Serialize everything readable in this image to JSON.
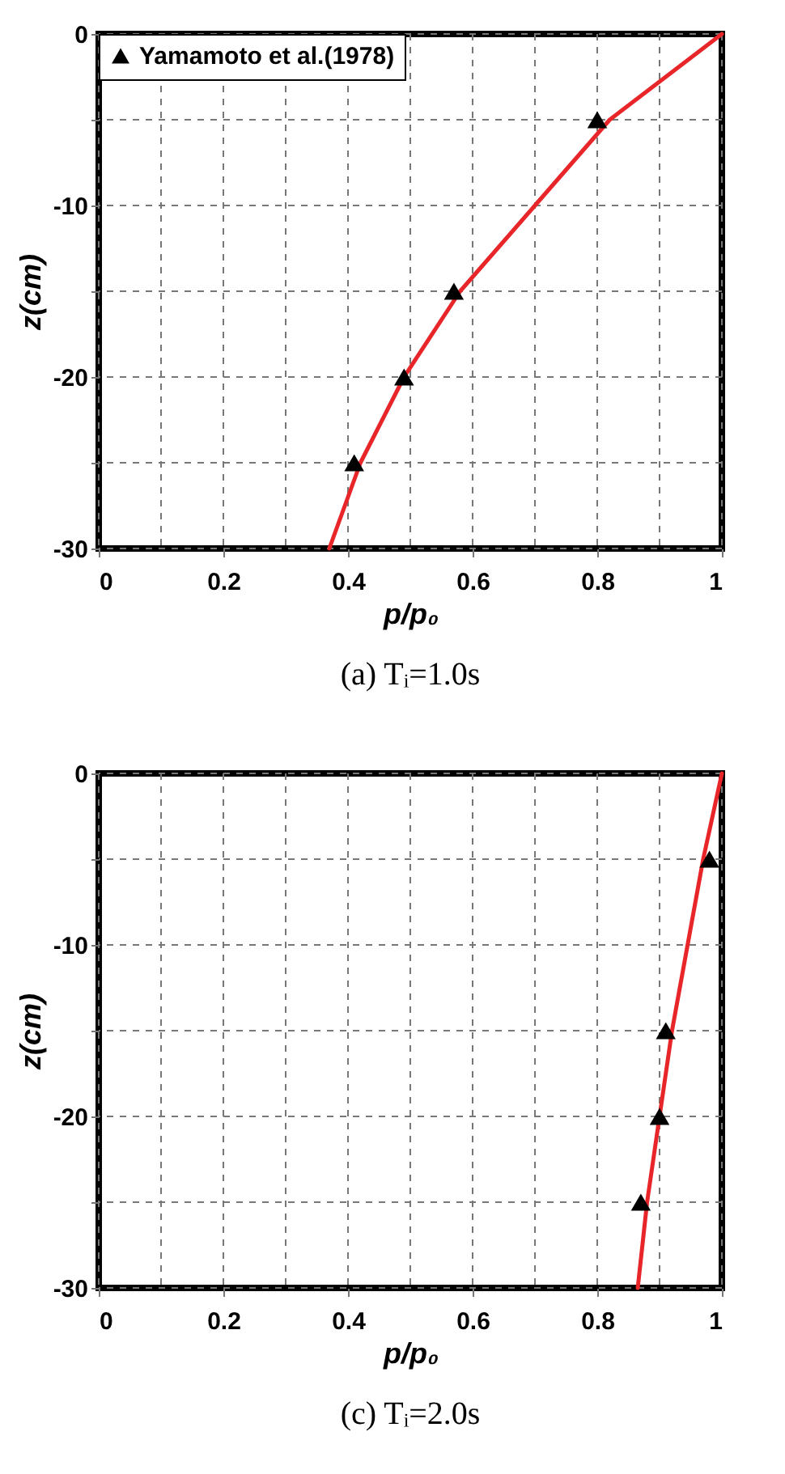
{
  "chart_data": [
    {
      "type": "scatter",
      "title": "(a)  Tᵢ=1.0s",
      "xlabel": "p/p₀",
      "ylabel": "z(cm)",
      "xlim": [
        0,
        1
      ],
      "ylim": [
        -30,
        0
      ],
      "xticks": [
        0,
        {
          "value": 0.1,
          "label": null
        },
        0.2,
        {
          "value": 0.3,
          "label": null
        },
        0.4,
        {
          "value": 0.5,
          "label": null
        },
        0.6,
        {
          "value": 0.7,
          "label": null
        },
        0.8,
        {
          "value": 0.9,
          "label": null
        },
        1
      ],
      "yticks": [
        -30,
        {
          "value": -25,
          "label": null
        },
        -20,
        {
          "value": -15,
          "label": null
        },
        -10,
        {
          "value": -5,
          "label": null
        },
        0
      ],
      "grid": true,
      "legend": "top left",
      "series": [
        {
          "type": "scatter",
          "name": "Yamamoto et al.(1978)",
          "color": "#000000",
          "marker": "triangle",
          "x": [
            0.8,
            0.57,
            0.49,
            0.41
          ],
          "values": [
            -5,
            -15,
            -20,
            -25
          ]
        },
        {
          "type": "line",
          "color": "#e8262a",
          "x": [
            1,
            0.91,
            0.82,
            0.7,
            0.58,
            0.49,
            0.42,
            0.37
          ],
          "values": [
            0,
            -2.5,
            -5,
            -10,
            -15,
            -20,
            -25,
            -30
          ]
        }
      ]
    },
    {
      "type": "scatter",
      "title": "(c)  Tᵢ=2.0s",
      "xlabel": "p/p₀",
      "ylabel": "z(cm)",
      "xlim": [
        0,
        1
      ],
      "ylim": [
        -30,
        0
      ],
      "xticks": [
        0,
        {
          "value": 0.1,
          "label": null
        },
        0.2,
        {
          "value": 0.3,
          "label": null
        },
        0.4,
        {
          "value": 0.5,
          "label": null
        },
        0.6,
        {
          "value": 0.7,
          "label": null
        },
        0.8,
        {
          "value": 0.9,
          "label": null
        },
        1
      ],
      "yticks": [
        -30,
        {
          "value": -25,
          "label": null
        },
        -20,
        {
          "value": -15,
          "label": null
        },
        -10,
        {
          "value": -5,
          "label": null
        },
        0
      ],
      "grid": true,
      "series": [
        {
          "type": "scatter",
          "color": "#000000",
          "marker": "triangle",
          "x": [
            0.98,
            0.91,
            0.9,
            0.87
          ],
          "values": [
            -5,
            -15,
            -20,
            -25
          ]
        },
        {
          "type": "line",
          "color": "#e8262a",
          "x": [
            1,
            0.97,
            0.945,
            0.92,
            0.9,
            0.88,
            0.865
          ],
          "values": [
            0,
            -5,
            -10,
            -15,
            -20,
            -25,
            -30
          ]
        }
      ]
    }
  ]
}
